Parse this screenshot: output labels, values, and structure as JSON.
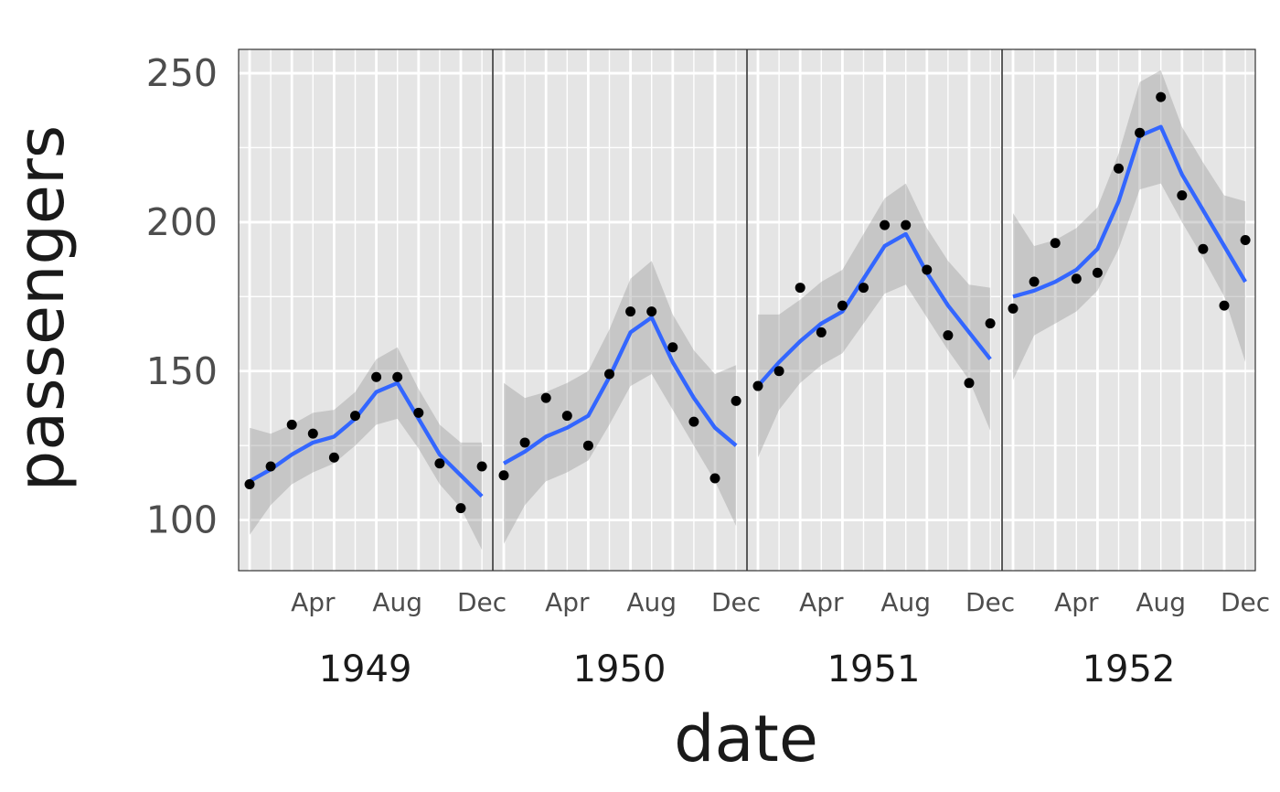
{
  "chart_data": {
    "type": "scatter",
    "title": "",
    "xlabel": "date",
    "ylabel": "passengers",
    "y_ticks": [
      "100",
      "150",
      "200",
      "250"
    ],
    "ylim": [
      83,
      258
    ],
    "month_tick_labels": [
      "Apr",
      "Aug",
      "Dec"
    ],
    "panels": [
      {
        "year": "1949",
        "points": [
          112,
          118,
          132,
          129,
          121,
          135,
          148,
          148,
          136,
          119,
          104,
          118
        ],
        "smooth": [
          113,
          117,
          122,
          126,
          128,
          134,
          143,
          146,
          134,
          122,
          115,
          108
        ],
        "band_halfwidth": [
          18,
          12,
          10,
          10,
          9,
          9,
          11,
          12,
          10,
          10,
          11,
          18
        ]
      },
      {
        "year": "1950",
        "points": [
          115,
          126,
          141,
          135,
          125,
          149,
          170,
          170,
          158,
          133,
          114,
          140
        ],
        "smooth": [
          119,
          123,
          128,
          131,
          135,
          148,
          163,
          168,
          153,
          141,
          131,
          125
        ],
        "band_halfwidth": [
          27,
          18,
          15,
          15,
          15,
          16,
          18,
          19,
          16,
          16,
          18,
          27
        ]
      },
      {
        "year": "1951",
        "points": [
          145,
          150,
          178,
          163,
          172,
          178,
          199,
          199,
          184,
          162,
          146,
          166
        ],
        "smooth": [
          145,
          153,
          160,
          166,
          170,
          181,
          192,
          196,
          183,
          172,
          163,
          154
        ],
        "band_halfwidth": [
          24,
          16,
          14,
          14,
          14,
          15,
          16,
          17,
          15,
          15,
          16,
          24
        ]
      },
      {
        "year": "1952",
        "points": [
          171,
          180,
          193,
          181,
          183,
          218,
          230,
          242,
          209,
          191,
          172,
          194
        ],
        "smooth": [
          175,
          177,
          180,
          184,
          191,
          207,
          229,
          232,
          216,
          204,
          192,
          180
        ],
        "band_halfwidth": [
          28,
          15,
          14,
          14,
          14,
          16,
          18,
          19,
          16,
          16,
          17,
          27
        ]
      }
    ],
    "colors": {
      "panel_bg": "#e5e5e5",
      "grid": "#ffffff",
      "points": "#000000",
      "smooth_line": "#3366ff",
      "band": "#999999",
      "panel_border": "#333333"
    }
  }
}
